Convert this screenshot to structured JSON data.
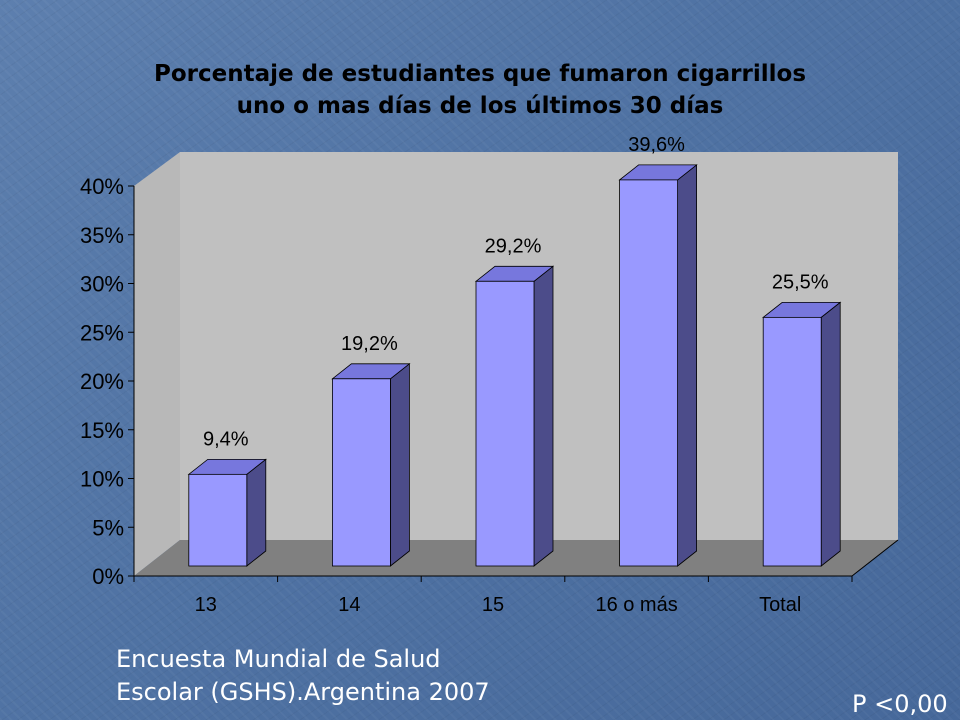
{
  "chart_data": {
    "type": "bar",
    "title_lines": [
      "Porcentaje de estudiantes que fumaron cigarrillos",
      "uno o mas días de los últimos 30 días"
    ],
    "categories": [
      "13",
      "14",
      "15",
      "16 o más",
      "Total"
    ],
    "values": [
      9.4,
      19.2,
      29.2,
      39.6,
      25.5
    ],
    "data_labels": [
      "9,4%",
      "19,2%",
      "29,2%",
      "39,6%",
      "25,5%"
    ],
    "yticks": [
      "0%",
      "5%",
      "10%",
      "15%",
      "20%",
      "25%",
      "30%",
      "35%",
      "40%"
    ],
    "ylim": [
      0,
      40
    ],
    "grid": false,
    "xlabel": "",
    "ylabel": "",
    "colors": {
      "bar_front": "#9999ff",
      "bar_side": "#4c4c8a",
      "bar_top": "#7777dd",
      "wall": "#c0c0c0",
      "floor": "#808080"
    }
  },
  "footer": {
    "source_line1": "Encuesta Mundial de Salud",
    "source_line2": "Escolar (GSHS).Argentina 2007",
    "p_value": "P <0,00"
  }
}
